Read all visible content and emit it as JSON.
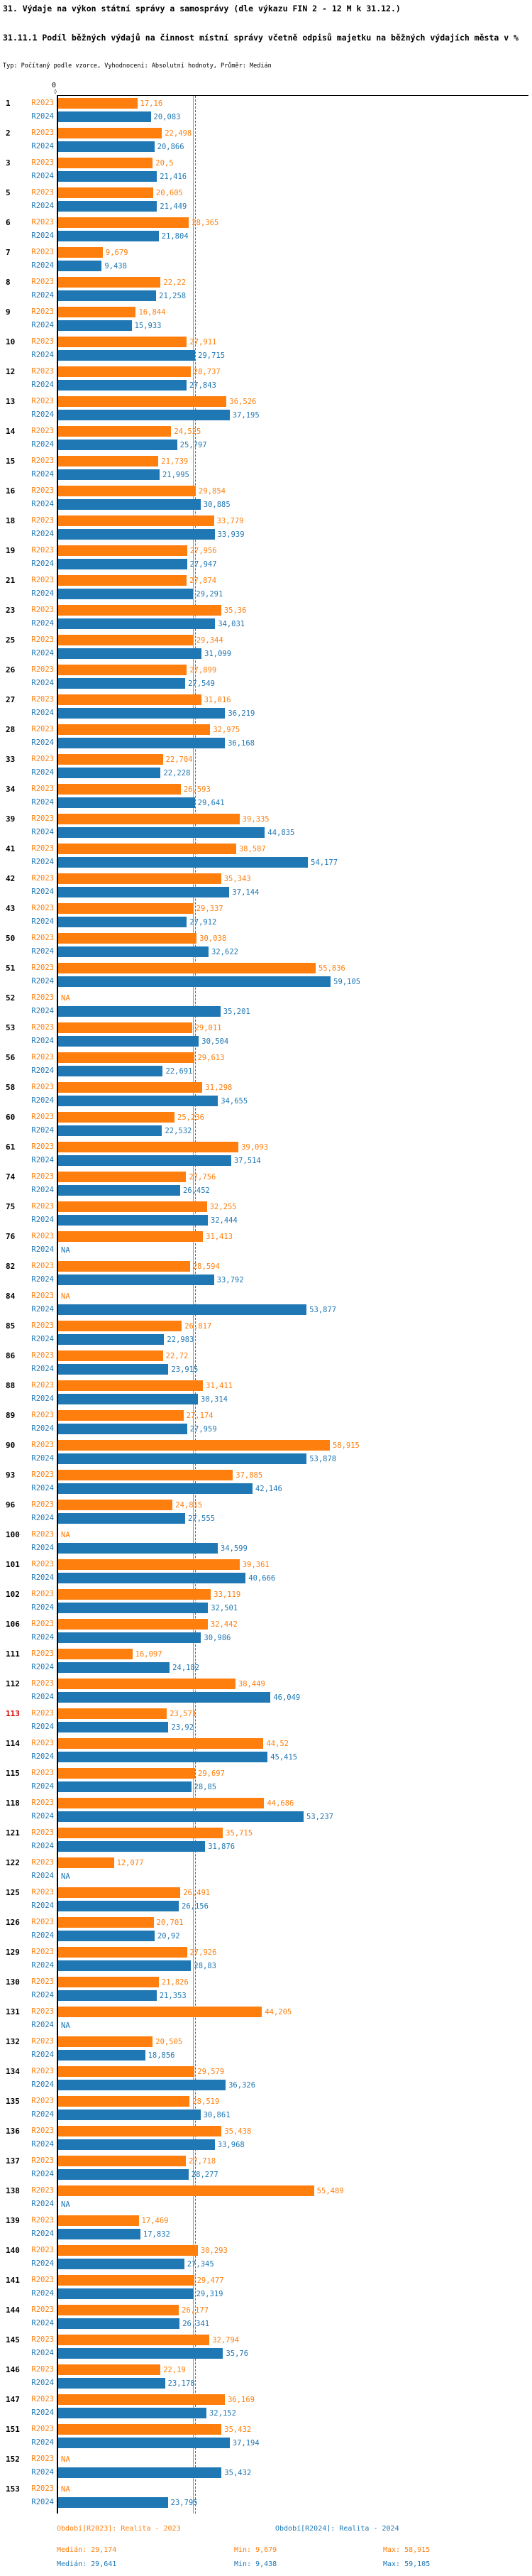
{
  "title": "31. Výdaje na výkon státní správy a samosprávy (dle výkazu FIN 2 - 12 M k 31.12.)",
  "subtitle": "31.11.1 Podíl běžných výdajů na činnost místní správy včetně odpisů majetku na běžných výdajích města v %",
  "meta_line": "Typ: Počítaný podle vzorce, Vyhodnocení: Absolutní hodnoty, Průměr: Medián",
  "axis": {
    "zero_label": "0",
    "zero_tick": "◊"
  },
  "series_labels": {
    "r2023": "R2023",
    "r2024": "R2024"
  },
  "na_label": "NA",
  "colors": {
    "r2023": "#ff7f0e",
    "r2024": "#1f77b4",
    "highlight": "#d40000"
  },
  "legend": {
    "r2023": "Období[R2023]: Realita - 2023",
    "r2024": "Období[R2024]: Realita - 2024"
  },
  "stats": {
    "r2023": {
      "median": "Medián: 29,174",
      "min": "Min: 9,679",
      "max": "Max: 58,915"
    },
    "r2024": {
      "median": "Medián: 29,641",
      "min": "Min: 9,438",
      "max": "Max: 59,105"
    }
  },
  "chart_data": {
    "type": "bar",
    "orientation": "horizontal",
    "x_axis": {
      "start": 0,
      "implied_max": 60,
      "unit": "%"
    },
    "median_2023": 29.174,
    "median_2024": 29.641,
    "highlighted_id": "113",
    "legend_position": "bottom",
    "rows": [
      {
        "id": "1",
        "r2023": "17,16",
        "r2024": "20,083"
      },
      {
        "id": "2",
        "r2023": "22,498",
        "r2024": "20,866"
      },
      {
        "id": "3",
        "r2023": "20,5",
        "r2024": "21,416"
      },
      {
        "id": "5",
        "r2023": "20,605",
        "r2024": "21,449"
      },
      {
        "id": "6",
        "r2023": "28,365",
        "r2024": "21,804"
      },
      {
        "id": "7",
        "r2023": "9,679",
        "r2024": "9,438"
      },
      {
        "id": "8",
        "r2023": "22,22",
        "r2024": "21,258"
      },
      {
        "id": "9",
        "r2023": "16,844",
        "r2024": "15,933"
      },
      {
        "id": "10",
        "r2023": "27,911",
        "r2024": "29,715"
      },
      {
        "id": "12",
        "r2023": "28,737",
        "r2024": "27,843"
      },
      {
        "id": "13",
        "r2023": "36,526",
        "r2024": "37,195"
      },
      {
        "id": "14",
        "r2023": "24,525",
        "r2024": "25,797"
      },
      {
        "id": "15",
        "r2023": "21,739",
        "r2024": "21,995"
      },
      {
        "id": "16",
        "r2023": "29,854",
        "r2024": "30,885"
      },
      {
        "id": "18",
        "r2023": "33,779",
        "r2024": "33,939"
      },
      {
        "id": "19",
        "r2023": "27,956",
        "r2024": "27,947"
      },
      {
        "id": "21",
        "r2023": "27,874",
        "r2024": "29,291"
      },
      {
        "id": "23",
        "r2023": "35,36",
        "r2024": "34,031"
      },
      {
        "id": "25",
        "r2023": "29,344",
        "r2024": "31,099"
      },
      {
        "id": "26",
        "r2023": "27,899",
        "r2024": "27,549"
      },
      {
        "id": "27",
        "r2023": "31,016",
        "r2024": "36,219"
      },
      {
        "id": "28",
        "r2023": "32,975",
        "r2024": "36,168"
      },
      {
        "id": "33",
        "r2023": "22,704",
        "r2024": "22,228"
      },
      {
        "id": "34",
        "r2023": "26,593",
        "r2024": "29,641"
      },
      {
        "id": "39",
        "r2023": "39,335",
        "r2024": "44,835"
      },
      {
        "id": "41",
        "r2023": "38,587",
        "r2024": "54,177"
      },
      {
        "id": "42",
        "r2023": "35,343",
        "r2024": "37,144"
      },
      {
        "id": "43",
        "r2023": "29,337",
        "r2024": "27,912"
      },
      {
        "id": "50",
        "r2023": "30,038",
        "r2024": "32,622"
      },
      {
        "id": "51",
        "r2023": "55,836",
        "r2024": "59,105"
      },
      {
        "id": "52",
        "r2023": "NA",
        "r2024": "35,201"
      },
      {
        "id": "53",
        "r2023": "29,011",
        "r2024": "30,504"
      },
      {
        "id": "56",
        "r2023": "29,613",
        "r2024": "22,691"
      },
      {
        "id": "58",
        "r2023": "31,298",
        "r2024": "34,655"
      },
      {
        "id": "60",
        "r2023": "25,236",
        "r2024": "22,532"
      },
      {
        "id": "61",
        "r2023": "39,093",
        "r2024": "37,514"
      },
      {
        "id": "74",
        "r2023": "27,756",
        "r2024": "26,452"
      },
      {
        "id": "75",
        "r2023": "32,255",
        "r2024": "32,444"
      },
      {
        "id": "76",
        "r2023": "31,413",
        "r2024": "NA"
      },
      {
        "id": "82",
        "r2023": "28,594",
        "r2024": "33,792"
      },
      {
        "id": "84",
        "r2023": "NA",
        "r2024": "53,877"
      },
      {
        "id": "85",
        "r2023": "26,817",
        "r2024": "22,983"
      },
      {
        "id": "86",
        "r2023": "22,72",
        "r2024": "23,915"
      },
      {
        "id": "88",
        "r2023": "31,411",
        "r2024": "30,314"
      },
      {
        "id": "89",
        "r2023": "27,174",
        "r2024": "27,959"
      },
      {
        "id": "90",
        "r2023": "58,915",
        "r2024": "53,878"
      },
      {
        "id": "93",
        "r2023": "37,885",
        "r2024": "42,146"
      },
      {
        "id": "96",
        "r2023": "24,815",
        "r2024": "27,555"
      },
      {
        "id": "100",
        "r2023": "NA",
        "r2024": "34,599"
      },
      {
        "id": "101",
        "r2023": "39,361",
        "r2024": "40,666"
      },
      {
        "id": "102",
        "r2023": "33,119",
        "r2024": "32,501"
      },
      {
        "id": "106",
        "r2023": "32,442",
        "r2024": "30,986"
      },
      {
        "id": "111",
        "r2023": "16,097",
        "r2024": "24,182"
      },
      {
        "id": "112",
        "r2023": "38,449",
        "r2024": "46,049"
      },
      {
        "id": "113",
        "r2023": "23,571",
        "r2024": "23,92"
      },
      {
        "id": "114",
        "r2023": "44,52",
        "r2024": "45,415"
      },
      {
        "id": "115",
        "r2023": "29,697",
        "r2024": "28,85"
      },
      {
        "id": "118",
        "r2023": "44,686",
        "r2024": "53,237"
      },
      {
        "id": "121",
        "r2023": "35,715",
        "r2024": "31,876"
      },
      {
        "id": "122",
        "r2023": "12,077",
        "r2024": "NA"
      },
      {
        "id": "125",
        "r2023": "26,491",
        "r2024": "26,156"
      },
      {
        "id": "126",
        "r2023": "20,701",
        "r2024": "20,92"
      },
      {
        "id": "129",
        "r2023": "27,926",
        "r2024": "28,83"
      },
      {
        "id": "130",
        "r2023": "21,826",
        "r2024": "21,353"
      },
      {
        "id": "131",
        "r2023": "44,205",
        "r2024": "NA"
      },
      {
        "id": "132",
        "r2023": "20,505",
        "r2024": "18,856"
      },
      {
        "id": "134",
        "r2023": "29,579",
        "r2024": "36,326"
      },
      {
        "id": "135",
        "r2023": "28,519",
        "r2024": "30,861"
      },
      {
        "id": "136",
        "r2023": "35,438",
        "r2024": "33,968"
      },
      {
        "id": "137",
        "r2023": "27,718",
        "r2024": "28,277"
      },
      {
        "id": "138",
        "r2023": "55,489",
        "r2024": "NA"
      },
      {
        "id": "139",
        "r2023": "17,469",
        "r2024": "17,832"
      },
      {
        "id": "140",
        "r2023": "30,293",
        "r2024": "27,345"
      },
      {
        "id": "141",
        "r2023": "29,477",
        "r2024": "29,319"
      },
      {
        "id": "144",
        "r2023": "26,177",
        "r2024": "26,341"
      },
      {
        "id": "145",
        "r2023": "32,794",
        "r2024": "35,76"
      },
      {
        "id": "146",
        "r2023": "22,19",
        "r2024": "23,178"
      },
      {
        "id": "147",
        "r2023": "36,169",
        "r2024": "32,152"
      },
      {
        "id": "151",
        "r2023": "35,432",
        "r2024": "37,194"
      },
      {
        "id": "152",
        "r2023": "NA",
        "r2024": "35,432"
      },
      {
        "id": "153",
        "r2023": "NA",
        "r2024": "23,795"
      }
    ]
  }
}
